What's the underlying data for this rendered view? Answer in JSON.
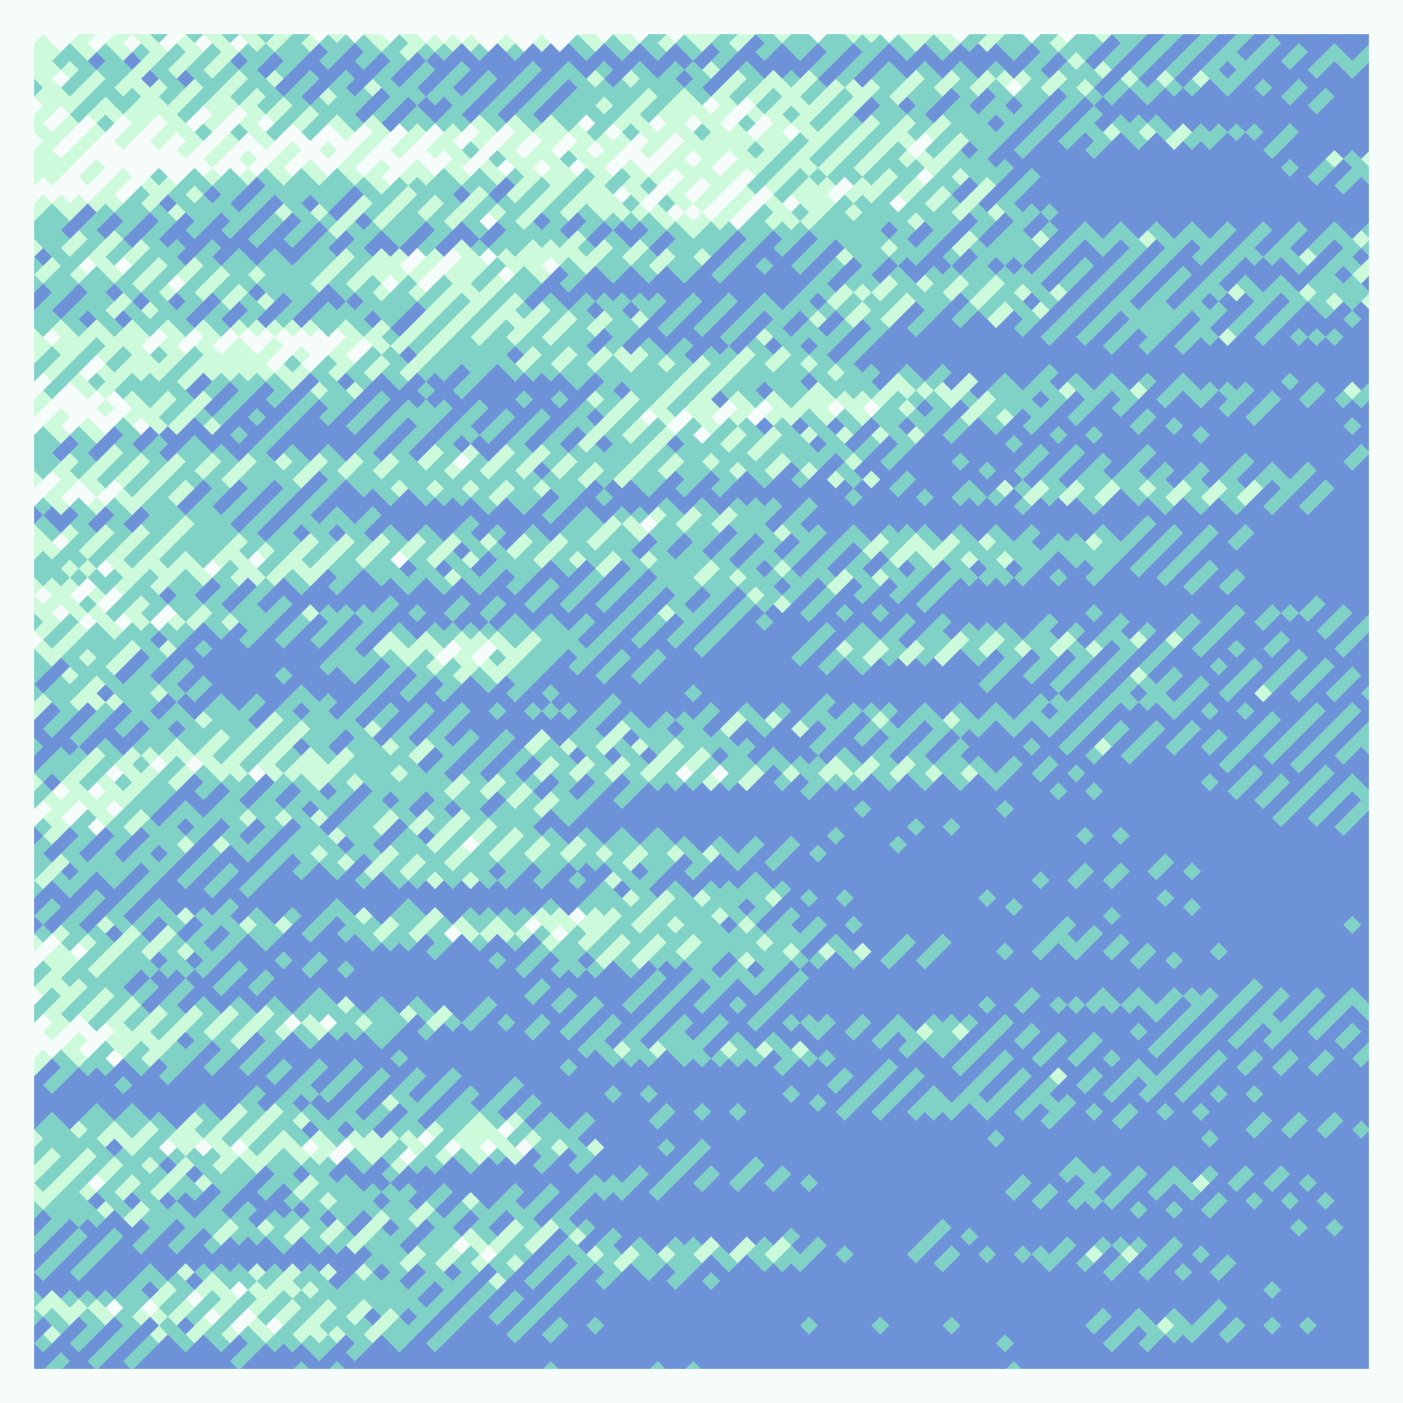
{
  "background": "#f6fcfa",
  "palette": [
    "#f6fcfa",
    "#cdfada",
    "#7fd2c5",
    "#6e92d8"
  ]
}
